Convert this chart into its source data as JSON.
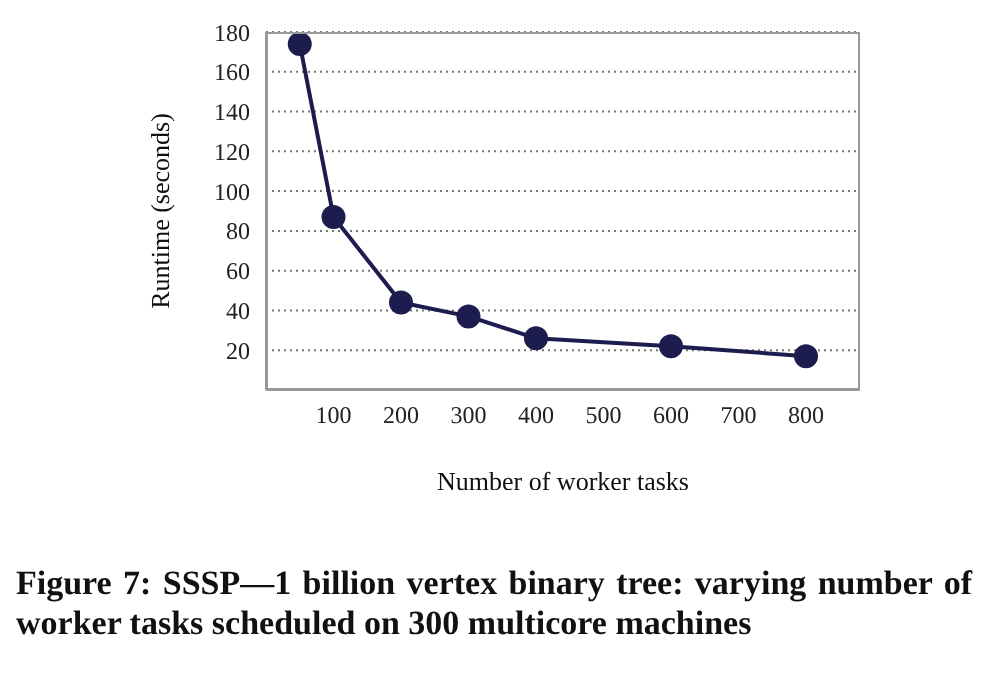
{
  "chart_data": {
    "type": "line",
    "xlabel": "Number of worker tasks",
    "ylabel": "Runtime (seconds)",
    "x": [
      50,
      100,
      200,
      300,
      400,
      600,
      800
    ],
    "series": [
      {
        "color": "#1c1c4e",
        "values": [
          174,
          87,
          44,
          37,
          26,
          22,
          17
        ]
      }
    ],
    "xlim": [
      0,
      880
    ],
    "xticks": [
      100,
      200,
      300,
      400,
      500,
      600,
      700,
      800
    ],
    "ylim": [
      0,
      180
    ],
    "yticks": [
      20,
      40,
      60,
      80,
      100,
      120,
      140,
      160,
      180
    ],
    "grid": "y",
    "marker": "circle",
    "line_style": "solid",
    "annotations": [
      "Figure 7: SSSP—1 billion vertex binary tree: varying number of worker tasks scheduled on 300 multicore machines"
    ]
  }
}
